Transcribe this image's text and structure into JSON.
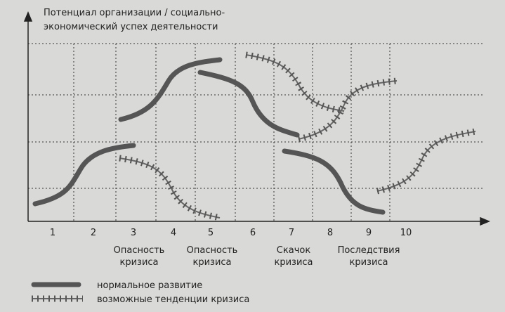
{
  "axis_label": [
    "Потенциал организации / социально-",
    "экономический успех деятельности"
  ],
  "columns": [
    "1",
    "2",
    "3",
    "4",
    "5",
    "6",
    "7",
    "8",
    "9",
    "10"
  ],
  "annotations": [
    [
      "Опасность",
      "кризиса"
    ],
    [
      "Опасность",
      "кризиса"
    ],
    [
      "Скачок",
      "кризиса"
    ],
    [
      "Последствия",
      "кризиса"
    ]
  ],
  "legend": [
    "нормальное развитие",
    "возможные тенденции кризиса"
  ]
}
